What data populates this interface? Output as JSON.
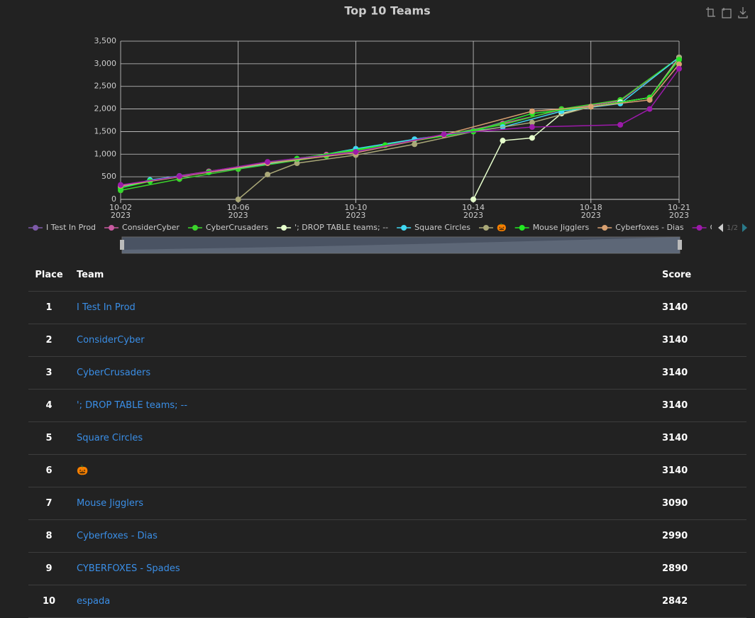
{
  "chart_data": {
    "type": "line",
    "title": "Top 10 Teams",
    "xlim": [
      "2023-10-02",
      "2023-10-21"
    ],
    "xticks": [
      {
        "value": "2023-10-02",
        "label": "10-02",
        "year": "2023"
      },
      {
        "value": "2023-10-06",
        "label": "10-06",
        "year": "2023"
      },
      {
        "value": "2023-10-10",
        "label": "10-10",
        "year": "2023"
      },
      {
        "value": "2023-10-14",
        "label": "10-14",
        "year": "2023"
      },
      {
        "value": "2023-10-18",
        "label": "10-18",
        "year": "2023"
      },
      {
        "value": "2023-10-21",
        "label": "10-21",
        "year": "2023"
      }
    ],
    "ylim": [
      0,
      3500
    ],
    "yticks": [
      0,
      500,
      {
        "value": 1000,
        "label": "1,000"
      },
      {
        "value": 1500,
        "label": "1,500"
      },
      {
        "value": 2000,
        "label": "2,000"
      },
      {
        "value": 2500,
        "label": "2,500"
      },
      {
        "value": 3000,
        "label": "3,000"
      },
      {
        "value": 3500,
        "label": "3,500"
      }
    ],
    "grid": true,
    "legend_page": "1/2",
    "series": [
      {
        "name": "I Test In Prod",
        "color": "#7d5aa8",
        "x": [
          "2023-10-02",
          "2023-10-04",
          "2023-10-06",
          "2023-10-08",
          "2023-10-10",
          "2023-10-12",
          "2023-10-14",
          "2023-10-16",
          "2023-10-18",
          "2023-10-20",
          "2023-10-21"
        ],
        "values": [
          300,
          520,
          680,
          900,
          1050,
          1330,
          1520,
          1900,
          2050,
          2250,
          3140
        ]
      },
      {
        "name": "ConsiderCyber",
        "color": "#c85aa0",
        "x": [
          "2023-10-02",
          "2023-10-03",
          "2023-10-05",
          "2023-10-07",
          "2023-10-09",
          "2023-10-11",
          "2023-10-13",
          "2023-10-15",
          "2023-10-17",
          "2023-10-19",
          "2023-10-21"
        ],
        "values": [
          280,
          420,
          620,
          820,
          990,
          1200,
          1420,
          1680,
          1980,
          2180,
          3140
        ]
      },
      {
        "name": "CyberCrusaders",
        "color": "#3cd42c",
        "x": [
          "2023-10-02",
          "2023-10-04",
          "2023-10-06",
          "2023-10-09",
          "2023-10-12",
          "2023-10-15",
          "2023-10-17",
          "2023-10-19",
          "2023-10-21"
        ],
        "values": [
          200,
          450,
          670,
          960,
          1320,
          1650,
          2000,
          2200,
          3140
        ]
      },
      {
        "name": "'; DROP TABLE teams; --",
        "color": "#e6ffcc",
        "x": [
          "2023-10-14",
          "2023-10-15",
          "2023-10-16",
          "2023-10-17",
          "2023-10-18",
          "2023-10-19",
          "2023-10-20",
          "2023-10-21"
        ],
        "values": [
          0,
          1300,
          1360,
          1900,
          2050,
          2150,
          2250,
          3140
        ]
      },
      {
        "name": "Square Circles",
        "color": "#40d8f2",
        "x": [
          "2023-10-02",
          "2023-10-03",
          "2023-10-05",
          "2023-10-08",
          "2023-10-10",
          "2023-10-12",
          "2023-10-15",
          "2023-10-17",
          "2023-10-19",
          "2023-10-21"
        ],
        "values": [
          250,
          430,
          600,
          880,
          1120,
          1330,
          1600,
          1950,
          2120,
          3140
        ]
      },
      {
        "name": "🎃",
        "color": "#aaa878",
        "x": [
          "2023-10-06",
          "2023-10-07",
          "2023-10-08",
          "2023-10-10",
          "2023-10-12",
          "2023-10-14",
          "2023-10-16",
          "2023-10-18",
          "2023-10-20",
          "2023-10-21"
        ],
        "values": [
          0,
          550,
          800,
          980,
          1220,
          1500,
          1700,
          2050,
          2250,
          3140
        ]
      },
      {
        "name": "Mouse Jigglers",
        "color": "#22e822",
        "x": [
          "2023-10-02",
          "2023-10-03",
          "2023-10-05",
          "2023-10-08",
          "2023-10-11",
          "2023-10-14",
          "2023-10-16",
          "2023-10-18",
          "2023-10-20",
          "2023-10-21"
        ],
        "values": [
          250,
          400,
          600,
          900,
          1200,
          1500,
          1900,
          2050,
          2250,
          3090
        ]
      },
      {
        "name": "Cyberfoxes - Dias",
        "color": "#d8a070",
        "x": [
          "2023-10-02",
          "2023-10-04",
          "2023-10-07",
          "2023-10-10",
          "2023-10-13",
          "2023-10-16",
          "2023-10-18",
          "2023-10-20",
          "2023-10-21"
        ],
        "values": [
          300,
          500,
          800,
          1030,
          1430,
          1950,
          2050,
          2200,
          2990
        ]
      },
      {
        "name": "CYBERFOXES - Spades",
        "color": "#9c1aaa",
        "x": [
          "2023-10-02",
          "2023-10-04",
          "2023-10-07",
          "2023-10-10",
          "2023-10-13",
          "2023-10-16",
          "2023-10-19",
          "2023-10-20",
          "2023-10-21"
        ],
        "values": [
          320,
          510,
          830,
          1050,
          1440,
          1600,
          1650,
          2000,
          2890
        ]
      }
    ]
  },
  "table": {
    "columns": [
      "Place",
      "Team",
      "Score"
    ],
    "rows": [
      [
        1,
        "I Test In Prod",
        3140
      ],
      [
        2,
        "ConsiderCyber",
        3140
      ],
      [
        3,
        "CyberCrusaders",
        3140
      ],
      [
        4,
        "'; DROP TABLE teams; --",
        3140
      ],
      [
        5,
        "Square Circles",
        3140
      ],
      [
        6,
        "🎃",
        3140
      ],
      [
        7,
        "Mouse Jigglers",
        3090
      ],
      [
        8,
        "Cyberfoxes - Dias",
        2990
      ],
      [
        9,
        "CYBERFOXES - Spades",
        2890
      ],
      [
        10,
        "espada",
        2842
      ]
    ]
  }
}
